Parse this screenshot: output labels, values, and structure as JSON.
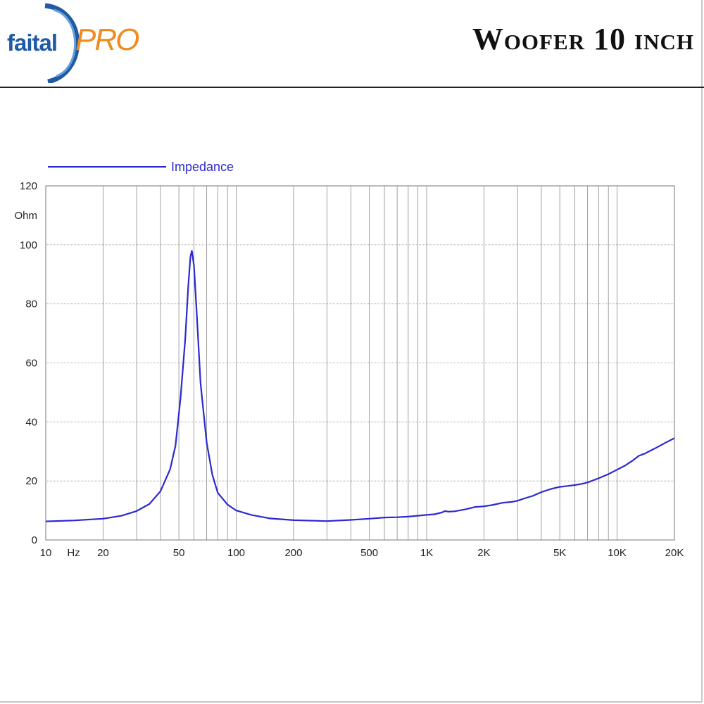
{
  "brand": {
    "name_left": "faital",
    "name_right": "PRO",
    "colors": {
      "blue": "#1f5aa6",
      "orange": "#f08c1e"
    }
  },
  "header": {
    "title": "Woofer 10 inch"
  },
  "chart_data": {
    "type": "line",
    "title": "",
    "xlabel": "Hz",
    "ylabel": "Ohm",
    "x_scale": "log",
    "xlim": [
      10,
      20000
    ],
    "ylim": [
      0,
      120
    ],
    "grid": true,
    "legend_position": "top-left",
    "x_ticks": [
      {
        "value": 10,
        "label": "10"
      },
      {
        "value": 20,
        "label": "20"
      },
      {
        "value": 50,
        "label": "50"
      },
      {
        "value": 100,
        "label": "100"
      },
      {
        "value": 200,
        "label": "200"
      },
      {
        "value": 500,
        "label": "500"
      },
      {
        "value": 1000,
        "label": "1K"
      },
      {
        "value": 2000,
        "label": "2K"
      },
      {
        "value": 5000,
        "label": "5K"
      },
      {
        "value": 10000,
        "label": "10K"
      },
      {
        "value": 20000,
        "label": "20K"
      }
    ],
    "y_ticks": [
      0,
      20,
      40,
      60,
      80,
      100,
      120
    ],
    "series": [
      {
        "name": "Impedance",
        "color": "#2a2ad2",
        "x": [
          10,
          14,
          20,
          25,
          30,
          35,
          40,
          45,
          48,
          51,
          54,
          56,
          57.5,
          58.5,
          60,
          62,
          65,
          70,
          75,
          80,
          90,
          100,
          120,
          150,
          200,
          300,
          400,
          500,
          600,
          700,
          800,
          1000,
          1100,
          1200,
          1250,
          1300,
          1400,
          1600,
          1800,
          2000,
          2200,
          2500,
          2800,
          3000,
          3300,
          3600,
          4000,
          4500,
          5000,
          5500,
          6000,
          6500,
          7000,
          8000,
          9000,
          10000,
          11000,
          12000,
          13000,
          14000,
          15000,
          16000,
          18000,
          20000
        ],
        "y": [
          6.3,
          6.6,
          7.2,
          8.2,
          9.8,
          12.2,
          16.5,
          24,
          32,
          48,
          68,
          86,
          96,
          98,
          93,
          77,
          53,
          33,
          22,
          16,
          12,
          10,
          8.5,
          7.3,
          6.7,
          6.4,
          6.8,
          7.2,
          7.6,
          7.7,
          7.9,
          8.5,
          8.7,
          9.3,
          9.8,
          9.6,
          9.7,
          10.4,
          11.2,
          11.4,
          11.8,
          12.6,
          12.9,
          13.3,
          14.2,
          14.9,
          16.2,
          17.3,
          18,
          18.3,
          18.6,
          19,
          19.5,
          20.9,
          22.3,
          23.8,
          25.2,
          26.8,
          28.5,
          29.3,
          30.3,
          31.2,
          33,
          34.5
        ]
      }
    ]
  }
}
